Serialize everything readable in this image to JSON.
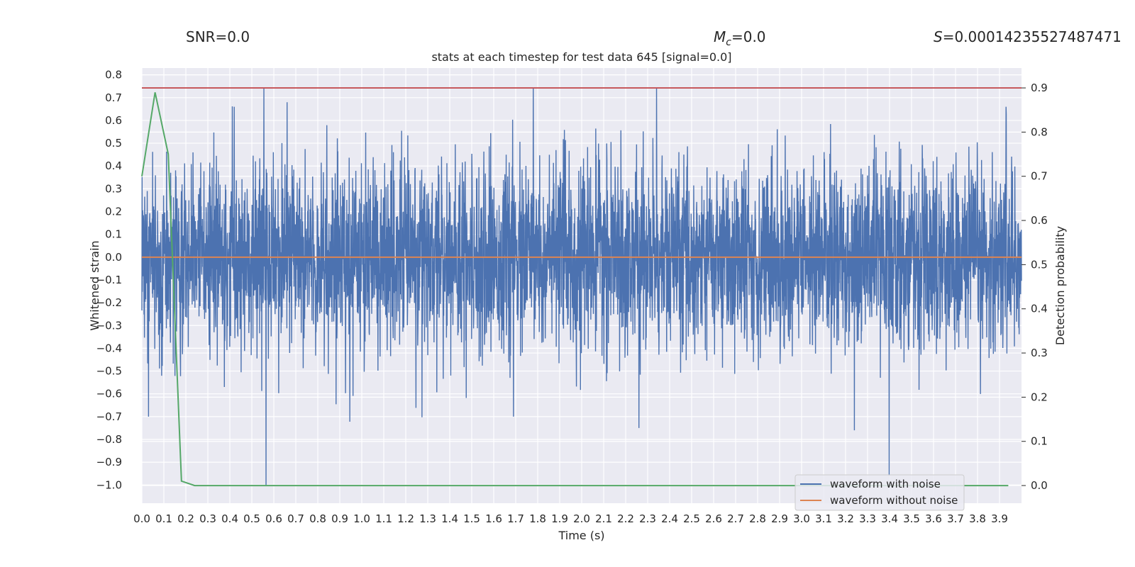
{
  "header": {
    "snr_label": "SNR=0.0",
    "mc_symbol": "M",
    "mc_subscript": "c",
    "mc_value": "=0.0",
    "s_symbol": "S",
    "s_value": "=0.00014235527487471"
  },
  "chart_data": {
    "type": "line",
    "title": "stats at each timestep for test data 645 [signal=0.0]",
    "xlabel": "Time (s)",
    "ylabel_left": "Whitened strain",
    "ylabel_right": "Detection probability",
    "xlim": [
      0.0,
      4.0
    ],
    "ylim_left": [
      -1.08,
      0.83
    ],
    "ylim_right": [
      -0.04,
      0.945
    ],
    "x_ticks": [
      "0.0",
      "0.1",
      "0.2",
      "0.3",
      "0.4",
      "0.5",
      "0.6",
      "0.7",
      "0.8",
      "0.9",
      "1.0",
      "1.1",
      "1.2",
      "1.3",
      "1.4",
      "1.5",
      "1.6",
      "1.7",
      "1.8",
      "1.9",
      "2.0",
      "2.1",
      "2.2",
      "2.3",
      "2.4",
      "2.5",
      "2.6",
      "2.7",
      "2.8",
      "2.9",
      "3.0",
      "3.1",
      "3.2",
      "3.3",
      "3.4",
      "3.5",
      "3.6",
      "3.7",
      "3.8",
      "3.9"
    ],
    "y_ticks_left": [
      "0.8",
      "0.7",
      "0.6",
      "0.5",
      "0.4",
      "0.3",
      "0.2",
      "0.1",
      "0.0",
      "−0.1",
      "−0.2",
      "−0.3",
      "−0.4",
      "−0.5",
      "−0.6",
      "−0.7",
      "−0.8",
      "−0.9",
      "−1.0"
    ],
    "y_ticks_right": [
      "0.9",
      "0.8",
      "0.7",
      "0.6",
      "0.5",
      "0.4",
      "0.3",
      "0.2",
      "0.1",
      "0.0"
    ],
    "grid": true,
    "legend_position": "lower-right",
    "colors": {
      "waveform_with_noise": "#4c72b0",
      "waveform_without_noise": "#dd8452",
      "detection_probability": "#55a868",
      "threshold": "#c44e52",
      "plot_bg": "#eaeaf2",
      "grid": "#ffffff"
    },
    "series": [
      {
        "name": "waveform with noise",
        "axis": "left",
        "note_peaks": [
          {
            "x": 0.555,
            "y": 0.74
          },
          {
            "x": 1.78,
            "y": 0.74
          },
          {
            "x": 2.34,
            "y": 0.74
          },
          {
            "x": 0.42,
            "y": 0.66
          },
          {
            "x": 0.66,
            "y": 0.68
          },
          {
            "x": 3.93,
            "y": 0.66
          },
          {
            "x": 0.565,
            "y": -1.0
          },
          {
            "x": 2.26,
            "y": -0.75
          },
          {
            "x": 3.24,
            "y": -0.76
          },
          {
            "x": 0.03,
            "y": -0.7
          },
          {
            "x": 1.69,
            "y": -0.7
          }
        ],
        "amplitude_range": [
          -1.0,
          0.74
        ]
      },
      {
        "name": "waveform without noise",
        "axis": "left",
        "constant": 0.0
      },
      {
        "axis": "right",
        "x": [
          0.0,
          0.06,
          0.12,
          0.18,
          0.24,
          3.94
        ],
        "y": [
          0.7,
          0.89,
          0.75,
          0.01,
          0.0,
          0.0
        ]
      },
      {
        "axis": "right",
        "constant": 0.9
      }
    ]
  }
}
